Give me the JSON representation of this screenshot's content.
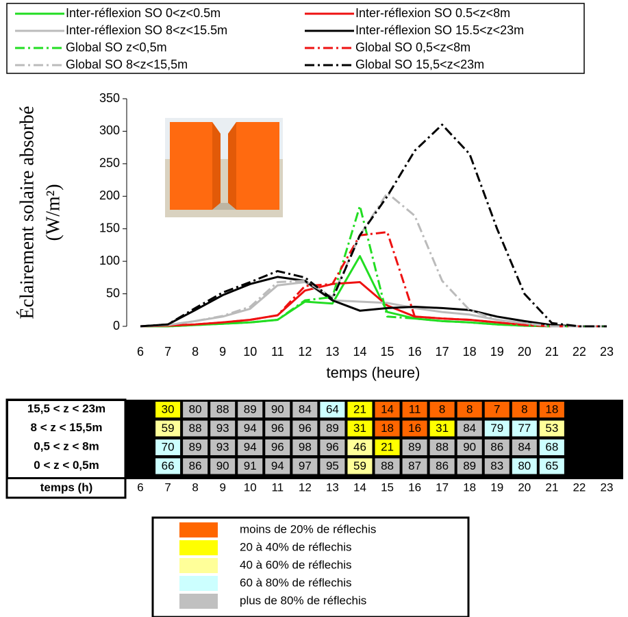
{
  "chart_data": {
    "type": "line",
    "y_label": [
      "Éclairement solaire absorbé",
      "(W/m²)"
    ],
    "x_label": "temps (heure)",
    "x": [
      6,
      7,
      8,
      9,
      10,
      11,
      12,
      13,
      14,
      15,
      16,
      17,
      18,
      19,
      20,
      21,
      22,
      23
    ],
    "xlim": [
      5.5,
      23.5
    ],
    "xticks": [
      6,
      7,
      8,
      9,
      10,
      11,
      12,
      13,
      14,
      15,
      16,
      17,
      18,
      19,
      20,
      21,
      22,
      23
    ],
    "ylim": [
      0,
      350
    ],
    "yticks": [
      0,
      50,
      100,
      150,
      200,
      250,
      300,
      350
    ],
    "grid": false,
    "series": [
      {
        "name": "Inter-réflexion SO 0<z<0.5m",
        "color": "#22dd22",
        "style": "solid",
        "values": [
          0,
          0,
          2,
          4,
          6,
          10,
          38,
          35,
          108,
          22,
          12,
          8,
          6,
          3,
          1,
          0,
          0,
          0
        ]
      },
      {
        "name": "Inter-réflexion SO 0.5<z<8m",
        "color": "#ee1111",
        "style": "solid",
        "values": [
          0,
          1,
          3,
          6,
          10,
          17,
          55,
          65,
          68,
          32,
          15,
          12,
          10,
          6,
          2,
          0,
          0,
          0
        ]
      },
      {
        "name": "Inter-réflexion SO 8<z<15.5m",
        "color": "#bbbbbb",
        "style": "solid",
        "values": [
          0,
          2,
          8,
          15,
          27,
          63,
          68,
          40,
          38,
          36,
          28,
          22,
          18,
          10,
          5,
          0,
          0,
          0
        ]
      },
      {
        "name": "Inter-réflexion SO 15.5<z<23m",
        "color": "#000000",
        "style": "solid",
        "values": [
          0,
          3,
          25,
          48,
          65,
          76,
          70,
          40,
          24,
          28,
          30,
          28,
          25,
          15,
          8,
          2,
          0,
          0
        ]
      },
      {
        "name": "Global SO z<0,5m",
        "color": "#22dd22",
        "style": "dashdot",
        "values": [
          0,
          0,
          2,
          4,
          6,
          10,
          40,
          45,
          185,
          15,
          12,
          8,
          6,
          3,
          1,
          0,
          0,
          0
        ]
      },
      {
        "name": "Global SO 0,5<z<8m",
        "color": "#ee1111",
        "style": "dashdot",
        "values": [
          0,
          1,
          3,
          6,
          10,
          17,
          62,
          65,
          140,
          145,
          15,
          12,
          10,
          6,
          2,
          0,
          0,
          0
        ]
      },
      {
        "name": "Global SO 8<z<15,5m",
        "color": "#bbbbbb",
        "style": "dashdot",
        "values": [
          0,
          2,
          8,
          16,
          30,
          68,
          70,
          45,
          140,
          205,
          170,
          70,
          25,
          10,
          5,
          0,
          0,
          0
        ]
      },
      {
        "name": "Global SO 15,5<z<23m",
        "color": "#000000",
        "style": "dashdot",
        "values": [
          0,
          3,
          28,
          52,
          68,
          85,
          75,
          42,
          140,
          200,
          270,
          310,
          265,
          150,
          50,
          5,
          0,
          0
        ]
      }
    ]
  },
  "table": {
    "time_label": "temps (h)",
    "hours": [
      6,
      7,
      8,
      9,
      10,
      11,
      12,
      13,
      14,
      15,
      16,
      17,
      18,
      19,
      20,
      21,
      22,
      23
    ],
    "rows": [
      {
        "label": "15,5 < z < 23m",
        "color": "#000000",
        "values": [
          null,
          30,
          80,
          88,
          89,
          90,
          84,
          64,
          21,
          14,
          11,
          8,
          8,
          7,
          8,
          18,
          null,
          null
        ],
        "colors": [
          null,
          "#ffff00",
          "#c0c0c0",
          "#c0c0c0",
          "#c0c0c0",
          "#c0c0c0",
          "#c0c0c0",
          "#ccffff",
          "#ffff00",
          "#ff6600",
          "#ff6600",
          "#ff6600",
          "#ff6600",
          "#ff6600",
          "#ff6600",
          "#ff6600",
          null,
          null
        ]
      },
      {
        "label": "8 < z < 15,5m",
        "color": "#666699",
        "values": [
          null,
          59,
          88,
          93,
          94,
          96,
          96,
          89,
          31,
          18,
          16,
          31,
          84,
          79,
          77,
          53,
          null,
          null
        ],
        "colors": [
          null,
          "#ffff99",
          "#c0c0c0",
          "#c0c0c0",
          "#c0c0c0",
          "#c0c0c0",
          "#c0c0c0",
          "#c0c0c0",
          "#ffff00",
          "#ff6600",
          "#ff6600",
          "#ffff00",
          "#c0c0c0",
          "#ccffff",
          "#ccffff",
          "#ffff99",
          null,
          null
        ]
      },
      {
        "label": "0,5 < z < 8m",
        "color": "#ee1111",
        "values": [
          null,
          70,
          89,
          93,
          94,
          96,
          98,
          96,
          46,
          21,
          89,
          88,
          90,
          86,
          84,
          68,
          null,
          null
        ],
        "colors": [
          null,
          "#ccffff",
          "#c0c0c0",
          "#c0c0c0",
          "#c0c0c0",
          "#c0c0c0",
          "#c0c0c0",
          "#c0c0c0",
          "#ffff99",
          "#ffff00",
          "#c0c0c0",
          "#c0c0c0",
          "#c0c0c0",
          "#c0c0c0",
          "#c0c0c0",
          "#ccffff",
          null,
          null
        ]
      },
      {
        "label": "0 < z < 0,5m",
        "color": "#22cc22",
        "values": [
          null,
          66,
          86,
          90,
          91,
          94,
          97,
          95,
          59,
          88,
          87,
          86,
          89,
          83,
          80,
          65,
          null,
          null
        ],
        "colors": [
          null,
          "#ccffff",
          "#c0c0c0",
          "#c0c0c0",
          "#c0c0c0",
          "#c0c0c0",
          "#c0c0c0",
          "#c0c0c0",
          "#ffff99",
          "#c0c0c0",
          "#c0c0c0",
          "#c0c0c0",
          "#c0c0c0",
          "#c0c0c0",
          "#ccffff",
          "#ccffff",
          null,
          null
        ]
      }
    ]
  },
  "color_legend": [
    {
      "color": "#ff6600",
      "label": "moins de 20% de réflechis"
    },
    {
      "color": "#ffff00",
      "label": "20 à 40% de réflechis"
    },
    {
      "color": "#ffff99",
      "label": "40 à 60% de réflechis"
    },
    {
      "color": "#ccffff",
      "label": "60 à 80% de réflechis"
    },
    {
      "color": "#c0c0c0",
      "label": "plus de 80% de réflechis"
    }
  ]
}
